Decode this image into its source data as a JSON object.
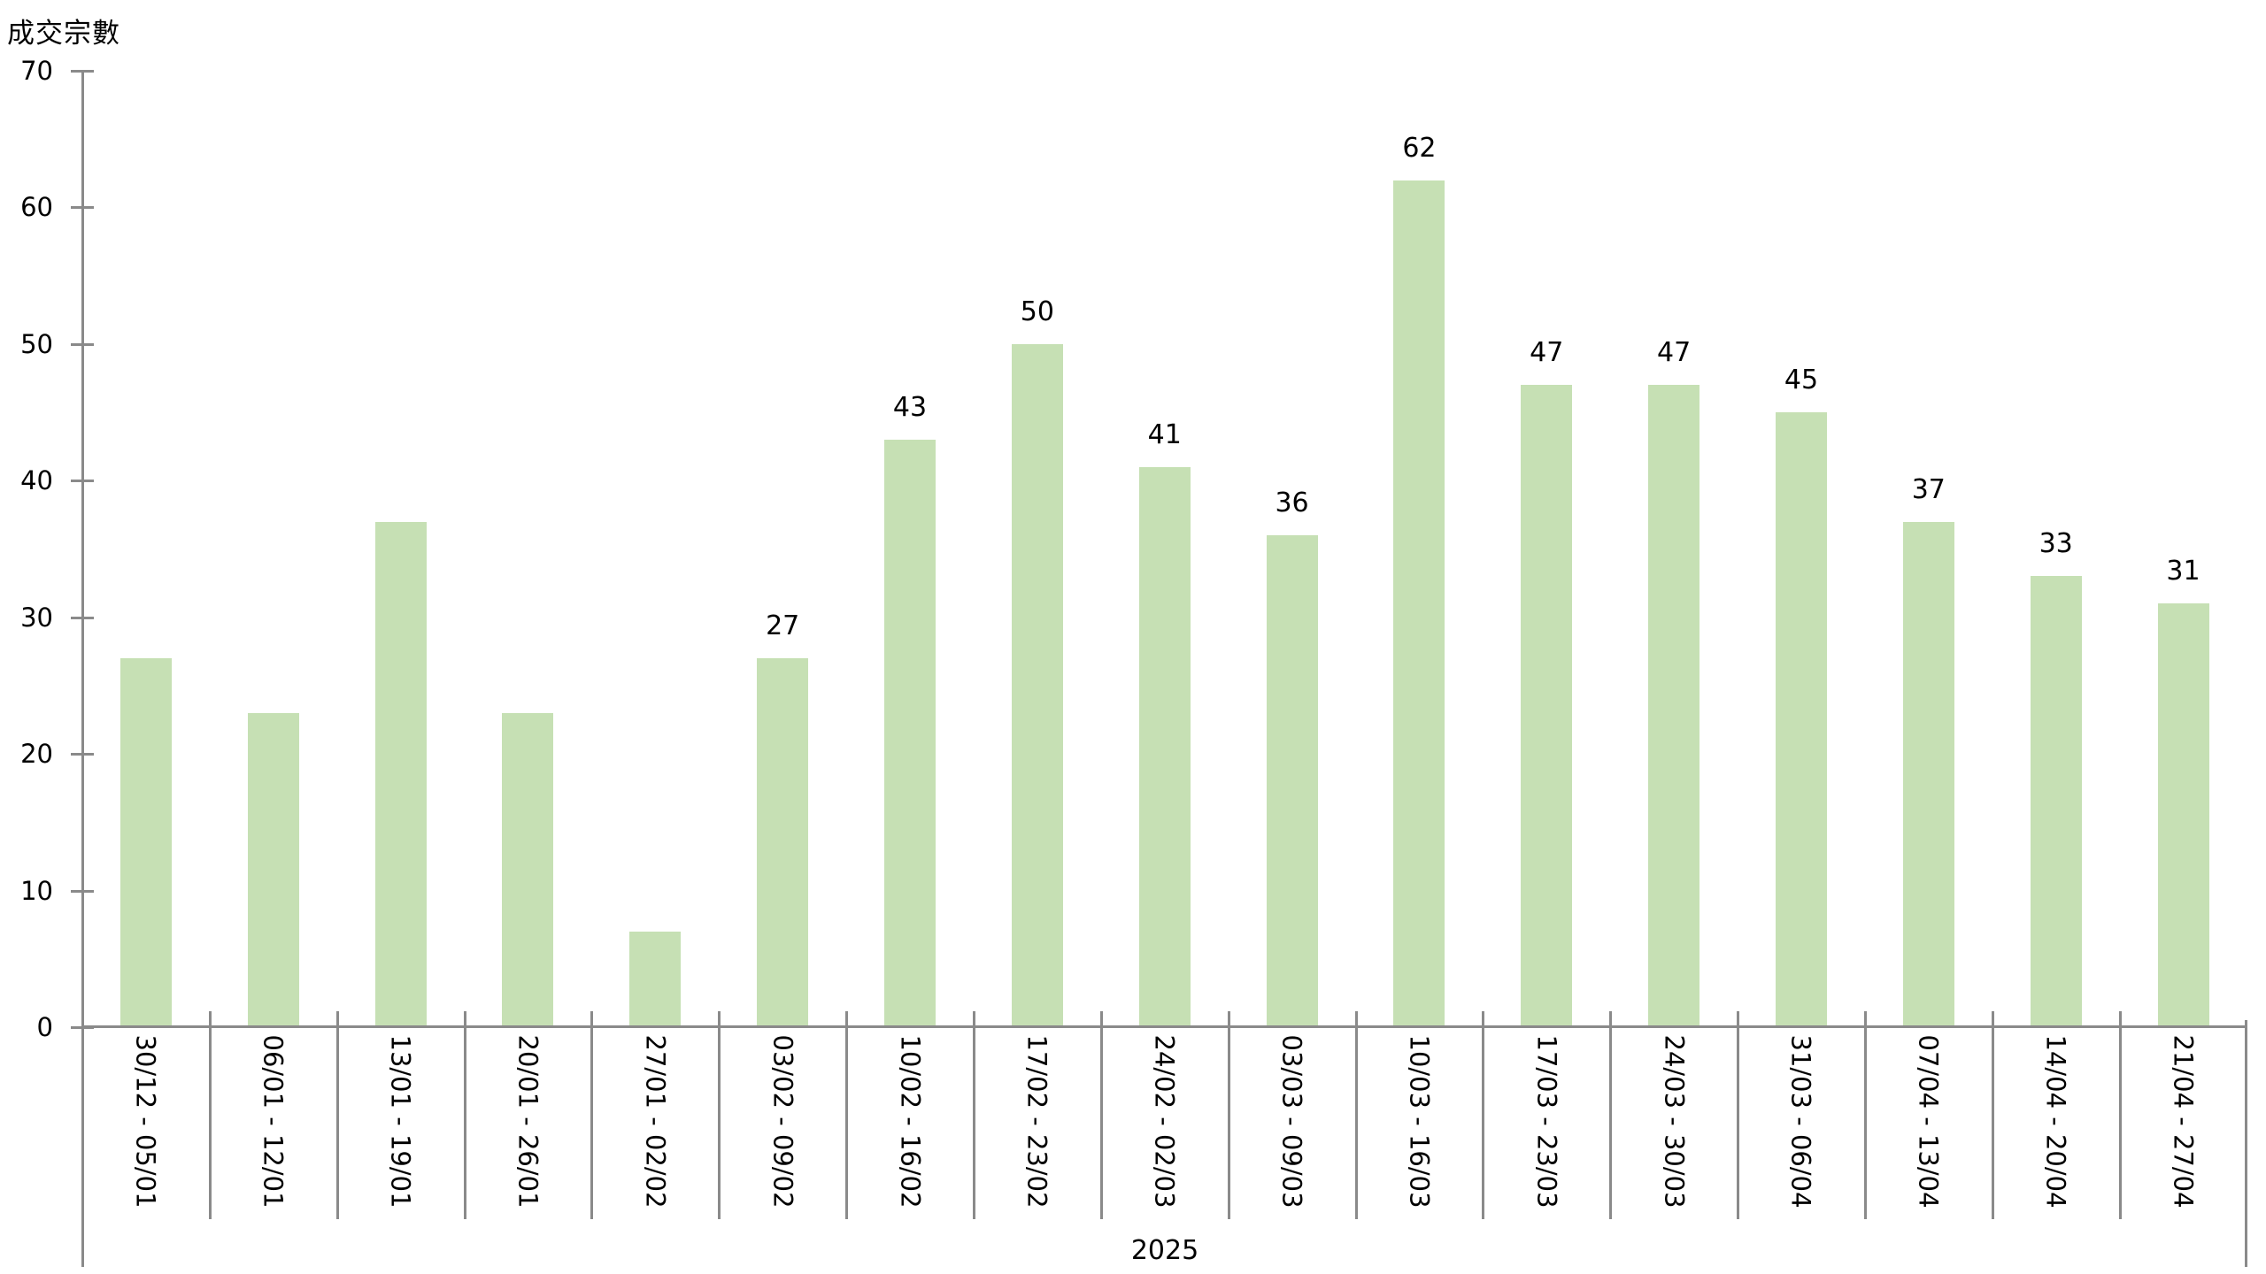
{
  "chart": {
    "y_axis_title": "成交宗數",
    "year_label": "2025"
  },
  "chart_data": {
    "type": "bar",
    "title": "",
    "ylabel": "成交宗數",
    "xlabel": "2025",
    "categories": [
      "30/12 - 05/01",
      "06/01 - 12/01",
      "13/01 - 19/01",
      "20/01 - 26/01",
      "27/01 - 02/02",
      "03/02 - 09/02",
      "10/02 - 16/02",
      "17/02 - 23/02",
      "24/02 - 02/03",
      "03/03 - 09/03",
      "10/03 - 16/03",
      "17/03 - 23/03",
      "24/03 - 30/03",
      "31/03 - 06/04",
      "07/04 - 13/04",
      "14/04 - 20/04",
      "21/04 - 27/04"
    ],
    "values": [
      27,
      23,
      37,
      23,
      7,
      27,
      43,
      50,
      41,
      36,
      62,
      47,
      47,
      45,
      37,
      33,
      31
    ],
    "data_labels_shown": [
      false,
      false,
      false,
      false,
      false,
      true,
      true,
      true,
      true,
      true,
      true,
      true,
      true,
      true,
      true,
      true,
      true
    ],
    "yticks": [
      0,
      10,
      20,
      30,
      40,
      50,
      60,
      70
    ],
    "ylim": [
      0,
      70
    ],
    "ytick_step": 10,
    "grid": false,
    "legend": false,
    "bar_color": "#c6e0b4",
    "axis_color": "#8a8a8a",
    "text_color": "#000000"
  }
}
